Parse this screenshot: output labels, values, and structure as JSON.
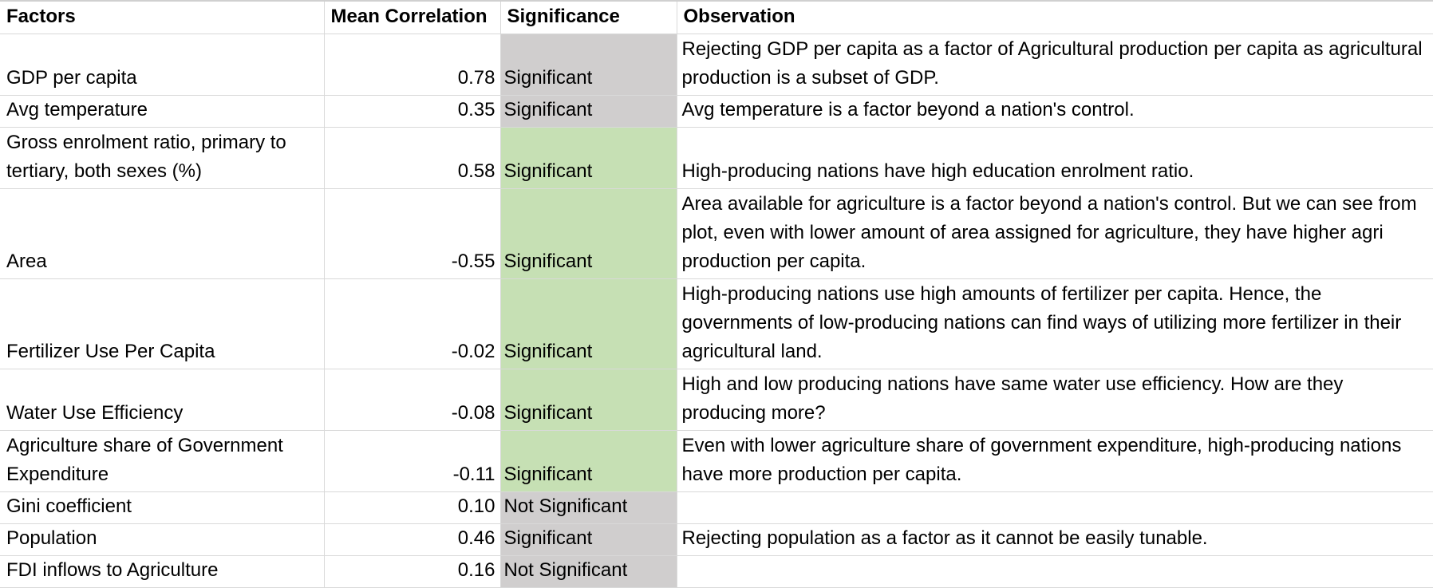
{
  "headers": {
    "factors": "Factors",
    "mean_correlation": "Mean Correlation",
    "significance": "Significance",
    "observation": "Observation"
  },
  "rows": [
    {
      "factor": "GDP per capita",
      "correlation": "0.78",
      "significance": "Significant",
      "sig_color": "#d0cece",
      "observation": "Rejecting GDP per capita as a factor of Agricultural production per capita as agricultural production is a subset of GDP."
    },
    {
      "factor": "Avg temperature",
      "correlation": "0.35",
      "significance": "Significant",
      "sig_color": "#d0cece",
      "observation": "Avg temperature is a factor beyond a nation's control."
    },
    {
      "factor": "Gross enrolment ratio, primary to tertiary, both sexes (%)",
      "correlation": "0.58",
      "significance": "Significant",
      "sig_color": "#c6e0b4",
      "observation": "High-producing nations have high education enrolment ratio."
    },
    {
      "factor": "Area",
      "correlation": "-0.55",
      "significance": "Significant",
      "sig_color": "#c6e0b4",
      "observation": "Area available for agriculture is a factor beyond a nation's control. But we can see from plot, even with lower amount of area assigned for agriculture, they have higher agri production per capita."
    },
    {
      "factor": "Fertilizer Use Per Capita",
      "correlation": "-0.02",
      "significance": "Significant",
      "sig_color": "#c6e0b4",
      "observation": "High-producing nations use high amounts of fertilizer per capita. Hence, the governments of low-producing nations can find ways of utilizing more  fertilizer in their agricultural land."
    },
    {
      "factor": "Water Use Efficiency",
      "correlation": "-0.08",
      "significance": "Significant",
      "sig_color": "#c6e0b4",
      "observation": "High and low producing nations have same water use efficiency. How are they producing more?"
    },
    {
      "factor": "Agriculture share of Government Expenditure",
      "correlation": "-0.11",
      "significance": "Significant",
      "sig_color": "#c6e0b4",
      "observation": "Even with lower agriculture share of government expenditure, high-producing nations have more production per capita."
    },
    {
      "factor": "Gini coefficient",
      "correlation": "0.10",
      "significance": "Not Significant",
      "sig_color": "#d0cece",
      "observation": ""
    },
    {
      "factor": "Population",
      "correlation": "0.46",
      "significance": "Significant",
      "sig_color": "#d0cece",
      "observation": "Rejecting population as a factor as it cannot be easily tunable."
    },
    {
      "factor": "FDI inflows to Agriculture",
      "correlation": "0.16",
      "significance": "Not Significant",
      "sig_color": "#d0cece",
      "observation": ""
    }
  ]
}
